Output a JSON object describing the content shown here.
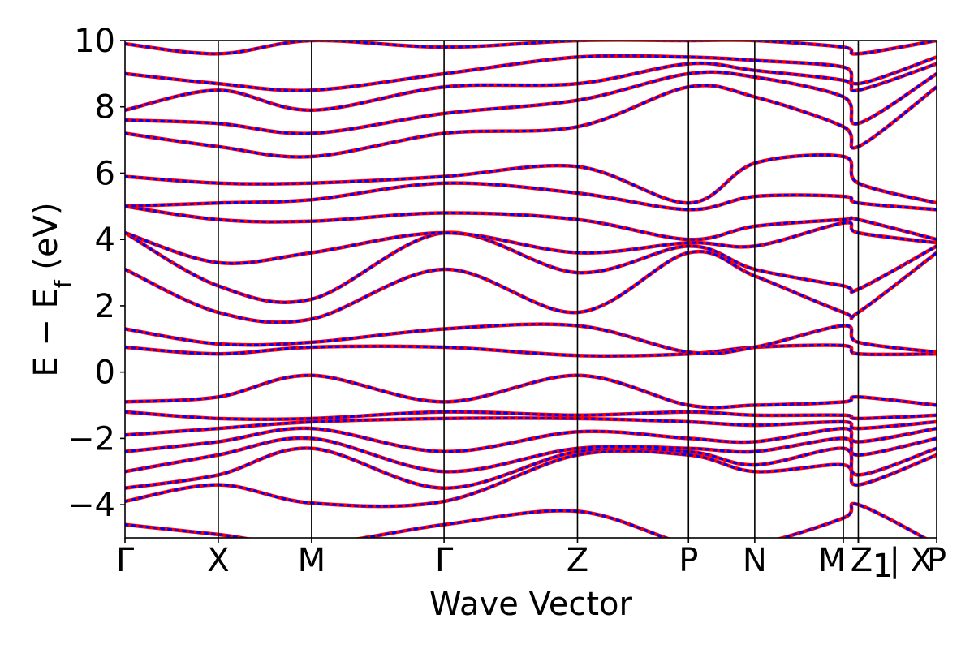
{
  "chart_data": {
    "type": "line",
    "title": "",
    "xlabel": "Wave Vector",
    "ylabel_main": "E − E",
    "ylabel_sub": "f",
    "ylabel_unit": " (eV)",
    "ylim": [
      -5,
      10
    ],
    "yticks": [
      -4,
      -2,
      0,
      2,
      4,
      6,
      8,
      10
    ],
    "ytick_labels": [
      "−4",
      "−2",
      "0",
      "2",
      "4",
      "6",
      "8",
      "10"
    ],
    "xlim": [
      0,
      8.7
    ],
    "kpoints": [
      {
        "label": "Γ",
        "x": 0.0
      },
      {
        "label": "X",
        "x": 1.0
      },
      {
        "label": "M",
        "x": 2.0
      },
      {
        "label": "Γ",
        "x": 3.42
      },
      {
        "label": "Z",
        "x": 4.85
      },
      {
        "label": "P",
        "x": 6.04
      },
      {
        "label": "N",
        "x": 6.75
      },
      {
        "label": "M",
        "x": 7.7
      },
      {
        "label": "Z",
        "x": 7.86
      },
      {
        "label": "1",
        "x": 7.86
      },
      {
        "label": "| X",
        "x": 7.86
      },
      {
        "label": "P",
        "x": 8.7
      }
    ],
    "grid": false,
    "legend": "none",
    "series_styles": [
      {
        "color": "#ff0000",
        "style": "solid"
      },
      {
        "color": "#0000ff",
        "style": "dotted"
      }
    ],
    "bands": [
      {
        "x": [
          0,
          1,
          2,
          3.42,
          4.85,
          6.04,
          6.75,
          7.7,
          7.86,
          8.7
        ],
        "y": [
          -4.6,
          -4.9,
          -5.2,
          -4.6,
          -4.2,
          -5.2,
          -5.2,
          -4.4,
          -4.0,
          -5.2
        ]
      },
      {
        "x": [
          0,
          1,
          2,
          3.42,
          4.85,
          6.04,
          6.75,
          7.7,
          7.86,
          8.7
        ],
        "y": [
          -3.9,
          -3.4,
          -3.95,
          -3.9,
          -2.5,
          -2.5,
          -3.0,
          -2.8,
          -3.4,
          -2.5
        ]
      },
      {
        "x": [
          0,
          1,
          2,
          3.42,
          4.85,
          6.04,
          6.75,
          7.7,
          7.86,
          8.7
        ],
        "y": [
          -3.5,
          -3.1,
          -2.3,
          -3.5,
          -2.4,
          -2.4,
          -2.8,
          -2.3,
          -3.1,
          -2.3
        ]
      },
      {
        "x": [
          0,
          1,
          2,
          3.42,
          4.85,
          6.04,
          6.75,
          7.7,
          7.86,
          8.7
        ],
        "y": [
          -3.0,
          -2.5,
          -2.0,
          -3.0,
          -2.3,
          -2.3,
          -2.4,
          -2.0,
          -2.5,
          -2.0
        ]
      },
      {
        "x": [
          0,
          1,
          2,
          3.42,
          4.85,
          6.04,
          6.75,
          7.7,
          7.86,
          8.7
        ],
        "y": [
          -2.4,
          -2.1,
          -1.7,
          -2.4,
          -1.8,
          -2.0,
          -2.1,
          -1.7,
          -2.1,
          -1.7
        ]
      },
      {
        "x": [
          0,
          1,
          2,
          3.42,
          4.85,
          6.04,
          6.75,
          7.7,
          7.86,
          8.7
        ],
        "y": [
          -1.9,
          -1.7,
          -1.5,
          -1.4,
          -1.4,
          -1.5,
          -1.6,
          -1.5,
          -1.7,
          -1.5
        ]
      },
      {
        "x": [
          0,
          1,
          2,
          3.42,
          4.85,
          6.04,
          6.75,
          7.7,
          7.86,
          8.7
        ],
        "y": [
          -1.2,
          -1.4,
          -1.4,
          -1.2,
          -1.3,
          -1.2,
          -1.3,
          -1.3,
          -1.4,
          -1.3
        ]
      },
      {
        "x": [
          0,
          1,
          2,
          3.42,
          4.85,
          6.04,
          6.75,
          7.7,
          7.86,
          8.7
        ],
        "y": [
          -0.9,
          -0.75,
          -0.1,
          -0.9,
          -0.1,
          -1.0,
          -1.0,
          -0.9,
          -0.75,
          -1.0
        ]
      },
      {
        "x": [
          0,
          1,
          2,
          3.42,
          4.85,
          6.04,
          6.75,
          7.7,
          7.86,
          8.7
        ],
        "y": [
          0.75,
          0.55,
          0.75,
          0.75,
          0.5,
          0.55,
          0.75,
          0.8,
          0.55,
          0.55
        ]
      },
      {
        "x": [
          0,
          1,
          2,
          3.42,
          4.85,
          6.04,
          6.75,
          7.7,
          7.86,
          8.7
        ],
        "y": [
          1.3,
          0.85,
          0.9,
          1.3,
          1.4,
          0.6,
          0.75,
          1.4,
          0.9,
          0.6
        ]
      },
      {
        "x": [
          0,
          1,
          2,
          3.42,
          4.85,
          6.04,
          6.75,
          7.7,
          7.86,
          8.7
        ],
        "y": [
          3.1,
          1.8,
          1.6,
          3.1,
          1.8,
          3.6,
          2.9,
          1.8,
          1.8,
          3.6
        ]
      },
      {
        "x": [
          0,
          1,
          2,
          3.42,
          4.85,
          6.04,
          6.75,
          7.7,
          7.86,
          8.7
        ],
        "y": [
          4.2,
          2.6,
          2.2,
          4.2,
          3.0,
          3.8,
          3.1,
          2.6,
          2.5,
          3.8
        ]
      },
      {
        "x": [
          0,
          1,
          2,
          3.42,
          4.85,
          6.04,
          6.75,
          7.7,
          7.86,
          8.7
        ],
        "y": [
          4.2,
          3.3,
          3.6,
          4.2,
          3.6,
          3.9,
          3.8,
          4.5,
          4.2,
          3.9
        ]
      },
      {
        "x": [
          0,
          1,
          2,
          3.42,
          4.85,
          6.04,
          6.75,
          7.7,
          7.86,
          8.7
        ],
        "y": [
          5.0,
          4.6,
          4.55,
          4.8,
          4.6,
          4.0,
          4.4,
          4.6,
          4.6,
          4.0
        ]
      },
      {
        "x": [
          0,
          1,
          2,
          3.42,
          4.85,
          6.04,
          6.75,
          7.7,
          7.86,
          8.7
        ],
        "y": [
          5.0,
          5.1,
          5.2,
          5.7,
          5.4,
          4.9,
          5.3,
          5.3,
          5.1,
          4.9
        ]
      },
      {
        "x": [
          0,
          1,
          2,
          3.42,
          4.85,
          6.04,
          6.75,
          7.7,
          7.86,
          8.7
        ],
        "y": [
          5.9,
          5.7,
          5.7,
          5.9,
          6.2,
          5.1,
          6.3,
          6.5,
          5.7,
          5.1
        ]
      },
      {
        "x": [
          0,
          1,
          2,
          3.42,
          4.85,
          6.04,
          6.75,
          7.7,
          7.86,
          8.7
        ],
        "y": [
          7.2,
          6.8,
          6.5,
          7.2,
          7.4,
          8.6,
          8.3,
          7.4,
          6.8,
          8.6
        ]
      },
      {
        "x": [
          0,
          1,
          2,
          3.42,
          4.85,
          6.04,
          6.75,
          7.7,
          7.86,
          8.7
        ],
        "y": [
          7.6,
          7.5,
          7.2,
          7.8,
          8.2,
          9.0,
          8.9,
          8.3,
          7.5,
          9.0
        ]
      },
      {
        "x": [
          0,
          1,
          2,
          3.42,
          4.85,
          6.04,
          6.75,
          7.7,
          7.86,
          8.7
        ],
        "y": [
          7.9,
          8.5,
          7.9,
          8.6,
          8.7,
          9.3,
          9.1,
          8.8,
          8.5,
          9.3
        ]
      },
      {
        "x": [
          0,
          1,
          2,
          3.42,
          4.85,
          6.04,
          6.75,
          7.7,
          7.86,
          8.7
        ],
        "y": [
          9.0,
          8.7,
          8.5,
          9.0,
          9.5,
          9.5,
          9.4,
          9.2,
          8.7,
          9.5
        ]
      },
      {
        "x": [
          0,
          1,
          2,
          3.42,
          4.85,
          6.04,
          6.75,
          7.7,
          7.86,
          8.7
        ],
        "y": [
          9.9,
          9.6,
          10.0,
          9.8,
          10.0,
          10.0,
          10.0,
          9.8,
          9.6,
          10.0
        ]
      }
    ]
  }
}
